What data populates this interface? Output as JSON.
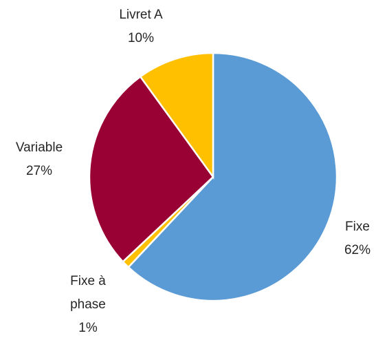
{
  "chart_data": {
    "type": "pie",
    "categories": [
      "Fixe",
      "Fixe à phase",
      "Variable",
      "Livret A"
    ],
    "values": [
      62,
      1,
      27,
      10
    ],
    "value_labels": [
      "62%",
      "1%",
      "27%",
      "10%"
    ],
    "colors": [
      "#5b9bd5",
      "#ffc000",
      "#990033",
      "#ffc000"
    ]
  }
}
